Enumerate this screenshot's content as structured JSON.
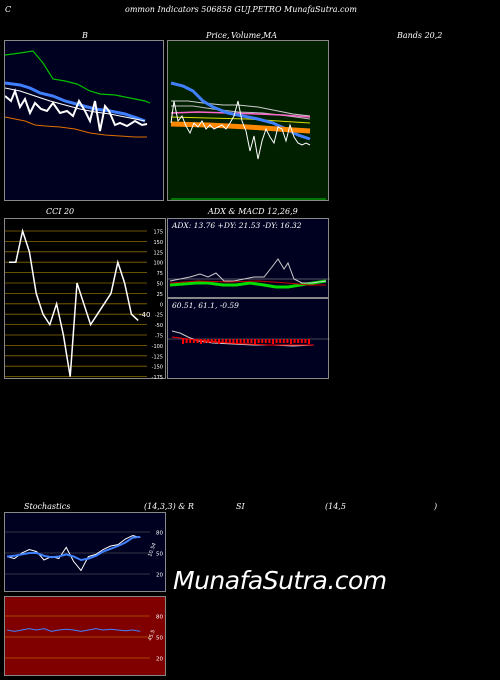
{
  "header": {
    "title_left": "C",
    "title_mid": "ommon  Indicators 506858  GUJ.PETRO MunafaSutra.com"
  },
  "titles": {
    "bollinger": "B",
    "price": "Price,",
    "volume": "Volume,",
    "ma": "MA",
    "bands": "Bands 20,2",
    "cci": "CCI 20",
    "adx_macd": "ADX  & MACD 12,26,9",
    "stoch_a": "Stochastics",
    "stoch_b": "(14,3,3) & R",
    "stoch_c": "SI",
    "stoch_d": "(14,5",
    "stoch_e": ")"
  },
  "adx": {
    "text": "ADX: 13.76  +DY: 21.53 -DY: 16.32"
  },
  "macd": {
    "text": "60.51,  61.1,  -0.59"
  },
  "cci": {
    "current": "-40",
    "ticks": [
      "175",
      "150",
      "125",
      "100",
      "75",
      "50",
      "25",
      "0",
      "-25",
      "-50",
      "-75",
      "-100",
      "-125",
      "-150",
      "-175"
    ]
  },
  "stoch": {
    "ticks": [
      "80",
      "50",
      "20"
    ],
    "label": "10.54"
  },
  "rsi": {
    "ticks": [
      "80",
      "50",
      "20"
    ],
    "label": "45.5"
  },
  "brand": "MunafaSutra.com",
  "colors": {
    "bollinger_bg": "#000020",
    "price_bg": "#002000",
    "cci_bg": "#000000",
    "rsi_bg": "#800000",
    "band_upper": "#00c000",
    "band_lower": "#e07000",
    "band_mid": "#4080ff",
    "ma_orange": "#ff8800",
    "adx_green": "#00dd00",
    "macd_red": "#ff0000"
  },
  "chart_data": [
    {
      "type": "line",
      "title": "B",
      "series": [
        {
          "values": [
            2.2,
            2.4,
            1.7,
            2.0,
            1.9,
            1.6,
            1.5,
            1.55,
            1.45,
            1.5,
            1.3,
            1.2,
            1.1,
            1.0,
            1.05,
            0.95,
            0.85,
            0.8,
            0.9
          ]
        },
        {
          "values": [
            3.8,
            4.2,
            4.0,
            3.4,
            3.0,
            2.8,
            2.9,
            2.6,
            2.5,
            2.2,
            2.1,
            2.2,
            2.4,
            2.3,
            2.4,
            2.3,
            2.2,
            2.0,
            1.6
          ]
        },
        {
          "values": [
            1.2,
            1.1,
            0.9,
            0.8,
            0.8,
            0.7,
            0.6,
            0.55,
            0.5,
            0.45,
            0.35,
            0.3,
            0.25,
            0.2,
            0.2,
            0.15,
            0.1,
            0.05,
            0.05
          ]
        },
        {
          "values": [
            2.5,
            2.3,
            2.1,
            1.9,
            1.8,
            1.6,
            1.5,
            1.5,
            1.4,
            1.3,
            1.2,
            1.2,
            1.1,
            1.0,
            1.0,
            0.9,
            0.9,
            0.8,
            0.8
          ]
        }
      ]
    },
    {
      "type": "heatmap",
      "title": "CCI 20",
      "series": [
        {
          "values": [
            100,
            100,
            175,
            125,
            25,
            -25,
            -50,
            0,
            -75,
            -175,
            50,
            0,
            -50,
            -25,
            0,
            25,
            100,
            50,
            -25,
            -40
          ]
        }
      ]
    },
    {
      "type": "line",
      "title": "Stochastics (14,3,3) & RSI (14,5)",
      "series": [
        {
          "values": [
            45,
            42,
            50,
            55,
            52,
            40,
            45,
            42,
            58,
            38,
            25,
            45,
            48,
            55,
            60,
            62,
            70,
            75,
            72
          ]
        },
        {
          "values": [
            45,
            46,
            48,
            50,
            50,
            46,
            44,
            45,
            48,
            45,
            40,
            42,
            46,
            52,
            56,
            60,
            65,
            72,
            73
          ]
        },
        {
          "values": [
            60,
            58,
            60,
            62,
            60,
            62,
            58,
            60,
            61,
            60,
            58,
            60,
            62,
            60,
            61,
            60,
            59,
            60,
            58
          ]
        }
      ]
    }
  ]
}
